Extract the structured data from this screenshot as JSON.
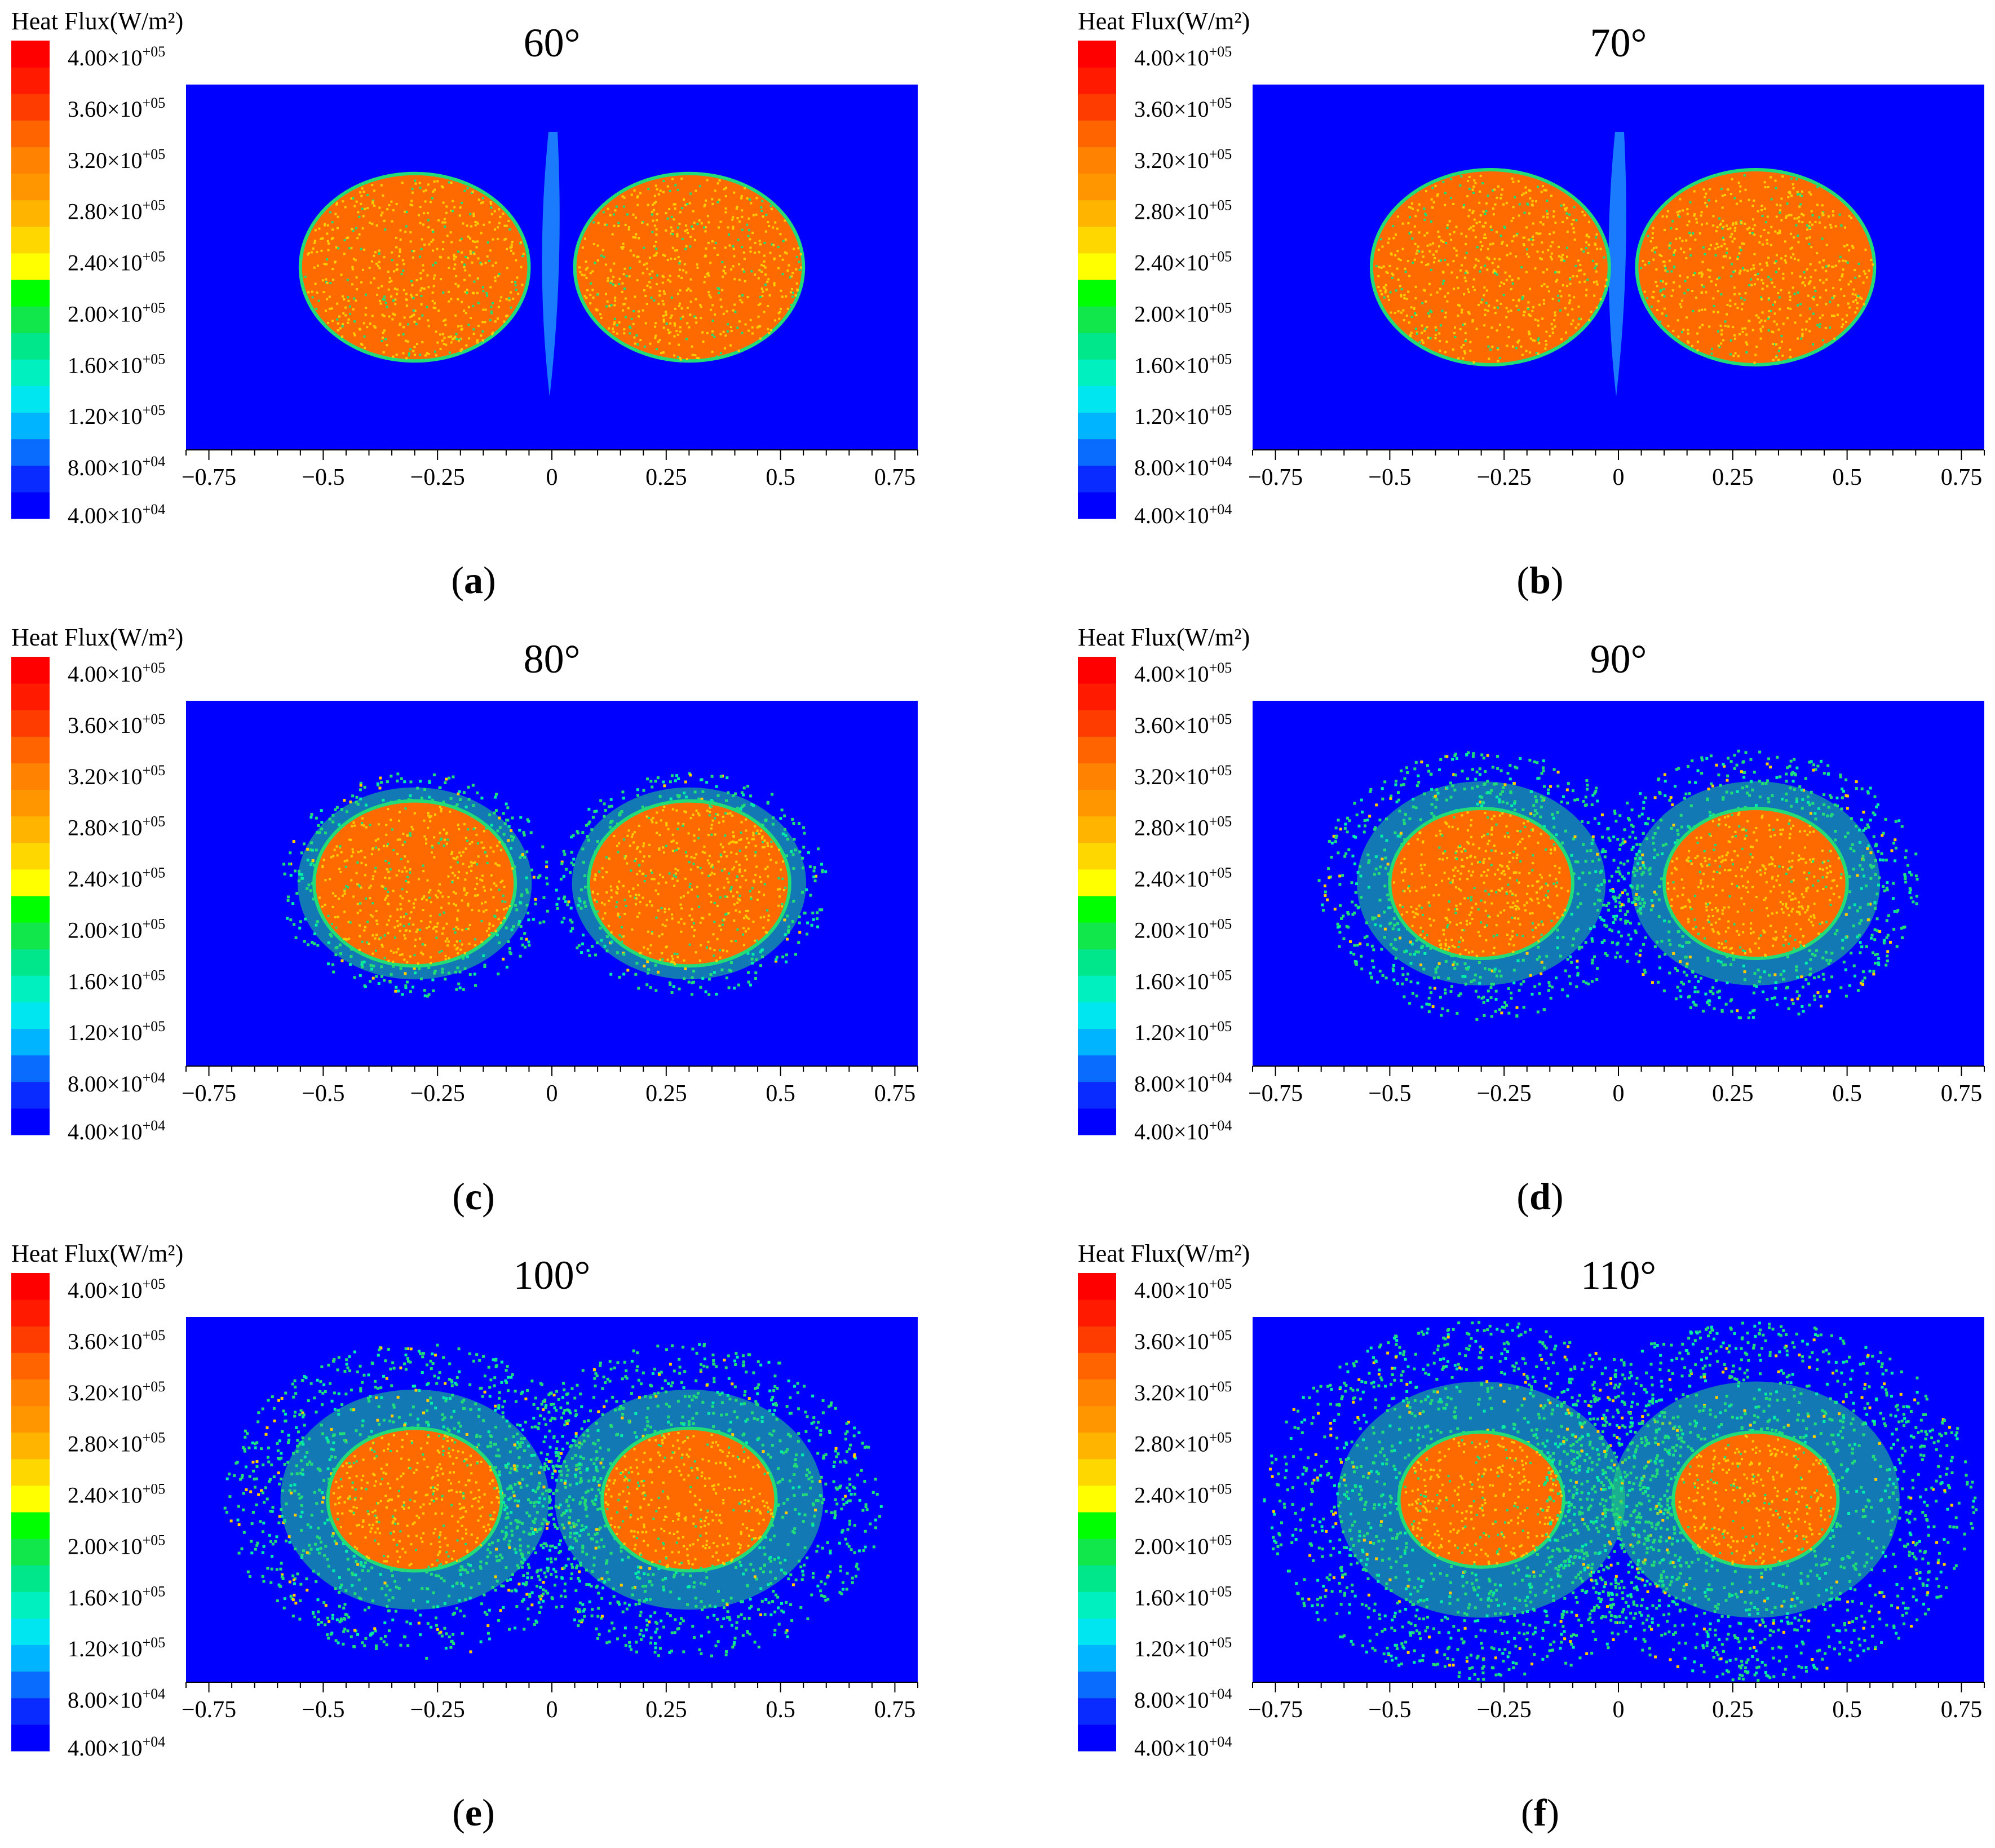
{
  "colorbar": {
    "title": "Heat Flux(W/m²)",
    "levels": [
      {
        "mantissa": "4.00×10",
        "exp": "+05",
        "value": 400000
      },
      {
        "mantissa": "3.60×10",
        "exp": "+05",
        "value": 360000
      },
      {
        "mantissa": "3.20×10",
        "exp": "+05",
        "value": 320000
      },
      {
        "mantissa": "2.80×10",
        "exp": "+05",
        "value": 280000
      },
      {
        "mantissa": "2.40×10",
        "exp": "+05",
        "value": 240000
      },
      {
        "mantissa": "2.00×10",
        "exp": "+05",
        "value": 200000
      },
      {
        "mantissa": "1.60×10",
        "exp": "+05",
        "value": 160000
      },
      {
        "mantissa": "1.20×10",
        "exp": "+05",
        "value": 120000
      },
      {
        "mantissa": "8.00×10",
        "exp": "+04",
        "value": 80000
      },
      {
        "mantissa": "4.00×10",
        "exp": "+04",
        "value": 40000
      }
    ],
    "colors": [
      "#0000ff",
      "#0a2bff",
      "#0a6bff",
      "#00b4ff",
      "#00e6f0",
      "#00f0c0",
      "#00e68a",
      "#11e64a",
      "#00ff00",
      "#ffff00",
      "#ffd700",
      "#ffb400",
      "#ff9600",
      "#ff8200",
      "#ff6400",
      "#ff3c00",
      "#ff1a00",
      "#ff0000"
    ]
  },
  "colors": {
    "background": "#0000ff",
    "core": "#ff6a00",
    "speck_hot": "#ffcc00",
    "ring": "#22dd77",
    "ring_alt": "#00eeaa",
    "gap_plume": "#1a7bff"
  },
  "chart_data": [
    {
      "type": "heatmap",
      "caption_letter": "a",
      "title": "60°",
      "x_ticks": [
        "−0.75",
        "−0.5",
        "−0.25",
        "0",
        "0.25",
        "0.5",
        "0.75"
      ],
      "xlim": [
        -0.8,
        0.8
      ],
      "spot_centers_x": [
        -0.3,
        0.3
      ],
      "core_radius_x": 0.25,
      "ring_radius_x": 0.25
    },
    {
      "type": "heatmap",
      "caption_letter": "b",
      "title": "70°",
      "x_ticks": [
        "−0.75",
        "−0.5",
        "−0.25",
        "0",
        "0.25",
        "0.5",
        "0.75"
      ],
      "xlim": [
        -0.8,
        0.8
      ],
      "spot_centers_x": [
        -0.28,
        0.3
      ],
      "core_radius_x": 0.26,
      "ring_radius_x": 0.26
    },
    {
      "type": "heatmap",
      "caption_letter": "c",
      "title": "80°",
      "x_ticks": [
        "−0.75",
        "−0.5",
        "−0.25",
        "0",
        "0.25",
        "0.5",
        "0.75"
      ],
      "xlim": [
        -0.8,
        0.8
      ],
      "spot_centers_x": [
        -0.3,
        0.3
      ],
      "core_radius_x": 0.22,
      "ring_radius_x": 0.3
    },
    {
      "type": "heatmap",
      "caption_letter": "d",
      "title": "90°",
      "x_ticks": [
        "−0.75",
        "−0.5",
        "−0.25",
        "0",
        "0.25",
        "0.5",
        "0.75"
      ],
      "xlim": [
        -0.8,
        0.8
      ],
      "spot_centers_x": [
        -0.3,
        0.3
      ],
      "core_radius_x": 0.2,
      "ring_radius_x": 0.36
    },
    {
      "type": "heatmap",
      "caption_letter": "e",
      "title": "100°",
      "x_ticks": [
        "−0.75",
        "−0.5",
        "−0.25",
        "0",
        "0.25",
        "0.5",
        "0.75"
      ],
      "xlim": [
        -0.8,
        0.8
      ],
      "spot_centers_x": [
        -0.3,
        0.3
      ],
      "core_radius_x": 0.19,
      "ring_radius_x": 0.42
    },
    {
      "type": "heatmap",
      "caption_letter": "f",
      "title": "110°",
      "x_ticks": [
        "−0.75",
        "−0.5",
        "−0.25",
        "0",
        "0.25",
        "0.5",
        "0.75"
      ],
      "xlim": [
        -0.8,
        0.8
      ],
      "spot_centers_x": [
        -0.3,
        0.3
      ],
      "core_radius_x": 0.18,
      "ring_radius_x": 0.48
    }
  ]
}
